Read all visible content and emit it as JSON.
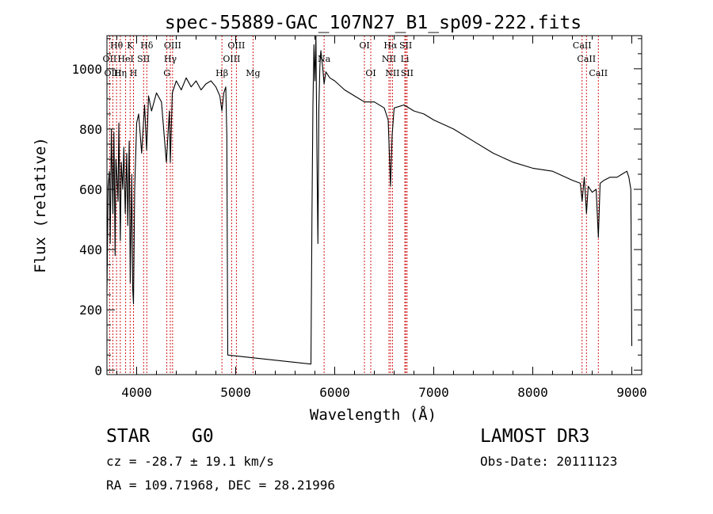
{
  "chart_data": {
    "type": "line",
    "title": "spec-55889-GAC_107N27_B1_sp09-222.fits",
    "xlabel": "Wavelength (Å)",
    "ylabel": "Flux (relative)",
    "xlim": [
      3700,
      9100
    ],
    "ylim": [
      -15,
      1110
    ],
    "xticks": [
      4000,
      5000,
      6000,
      7000,
      8000,
      9000
    ],
    "yticks": [
      0,
      200,
      400,
      600,
      800,
      1000
    ],
    "grid": false,
    "series": [
      {
        "name": "spectrum flux",
        "x": [
          3700,
          3712,
          3725,
          3733,
          3745,
          3760,
          3770,
          3782,
          3790,
          3800,
          3812,
          3820,
          3835,
          3845,
          3860,
          3870,
          3885,
          3900,
          3910,
          3925,
          3935,
          3950,
          3960,
          3968,
          3980,
          4000,
          4020,
          4050,
          4080,
          4101,
          4120,
          4150,
          4200,
          4250,
          4300,
          4330,
          4340,
          4360,
          4400,
          4450,
          4500,
          4550,
          4600,
          4650,
          4700,
          4750,
          4800,
          4840,
          4861,
          4880,
          4900,
          4910,
          4920,
          5760,
          5770,
          5780,
          5790,
          5800,
          5810,
          5820,
          5830,
          5840,
          5850,
          5860,
          5880,
          5893,
          5910,
          5950,
          6000,
          6100,
          6200,
          6300,
          6400,
          6500,
          6540,
          6563,
          6580,
          6600,
          6700,
          6800,
          6900,
          7000,
          7200,
          7400,
          7600,
          7800,
          8000,
          8200,
          8400,
          8480,
          8498,
          8520,
          8542,
          8560,
          8600,
          8640,
          8662,
          8680,
          8720,
          8780,
          8850,
          8900,
          8950,
          8970,
          8990,
          9000
        ],
        "values": [
          260,
          610,
          660,
          420,
          800,
          520,
          790,
          380,
          700,
          650,
          560,
          820,
          430,
          690,
          600,
          740,
          520,
          720,
          480,
          760,
          290,
          650,
          270,
          220,
          600,
          820,
          850,
          720,
          880,
          730,
          910,
          860,
          920,
          890,
          690,
          860,
          690,
          920,
          960,
          930,
          970,
          940,
          960,
          930,
          950,
          960,
          940,
          910,
          860,
          920,
          940,
          780,
          50,
          20,
          520,
          880,
          1080,
          960,
          1110,
          730,
          420,
          870,
          1010,
          1060,
          1000,
          950,
          990,
          970,
          960,
          930,
          910,
          890,
          890,
          870,
          830,
          610,
          780,
          870,
          880,
          860,
          850,
          830,
          800,
          760,
          720,
          690,
          670,
          660,
          630,
          620,
          560,
          640,
          520,
          610,
          590,
          600,
          440,
          620,
          630,
          640,
          640,
          650,
          660,
          640,
          600,
          80
        ]
      }
    ],
    "line_labels": [
      {
        "text": "Hθ",
        "x": 3797,
        "row": 1
      },
      {
        "text": "K",
        "x": 3934,
        "row": 1
      },
      {
        "text": "Hδ",
        "x": 4102,
        "row": 1
      },
      {
        "text": "OIII",
        "x": 4363,
        "row": 1
      },
      {
        "text": "OIII",
        "x": 5007,
        "row": 1
      },
      {
        "text": "OI",
        "x": 6300,
        "row": 1
      },
      {
        "text": "Hα",
        "x": 6563,
        "row": 1
      },
      {
        "text": "SII",
        "x": 6717,
        "row": 1
      },
      {
        "text": "CaII",
        "x": 8498,
        "row": 1
      },
      {
        "text": "OII",
        "x": 3727,
        "row": 2
      },
      {
        "text": "HeI",
        "x": 3889,
        "row": 2
      },
      {
        "text": "SII",
        "x": 4070,
        "row": 2
      },
      {
        "text": "Hγ",
        "x": 4340,
        "row": 2
      },
      {
        "text": "OIII",
        "x": 4959,
        "row": 2
      },
      {
        "text": "Na",
        "x": 5893,
        "row": 2
      },
      {
        "text": "NII",
        "x": 6548,
        "row": 2
      },
      {
        "text": "Li",
        "x": 6708,
        "row": 2
      },
      {
        "text": "CaII",
        "x": 8542,
        "row": 2
      },
      {
        "text": "OIII",
        "x": 3760,
        "row": 3
      },
      {
        "text": "Hη",
        "x": 3835,
        "row": 3
      },
      {
        "text": "H",
        "x": 3968,
        "row": 3
      },
      {
        "text": "G",
        "x": 4305,
        "row": 3
      },
      {
        "text": "Hβ",
        "x": 4861,
        "row": 3
      },
      {
        "text": "Mg",
        "x": 5175,
        "row": 3
      },
      {
        "text": "OI",
        "x": 6364,
        "row": 3
      },
      {
        "text": "NII",
        "x": 6583,
        "row": 3
      },
      {
        "text": "SII",
        "x": 6731,
        "row": 3
      },
      {
        "text": "CaII",
        "x": 8662,
        "row": 3
      }
    ],
    "line_color": "#000000",
    "marker_color": "#cc0000"
  },
  "info": {
    "object_class": "STAR",
    "spectral_type": "G0",
    "survey": "LAMOST DR3",
    "cz": "cz = -28.7 ± 19.1 km/s",
    "obs_date": "Obs-Date: 20111123",
    "radec": "RA = 109.71968, DEC =  28.21996"
  }
}
